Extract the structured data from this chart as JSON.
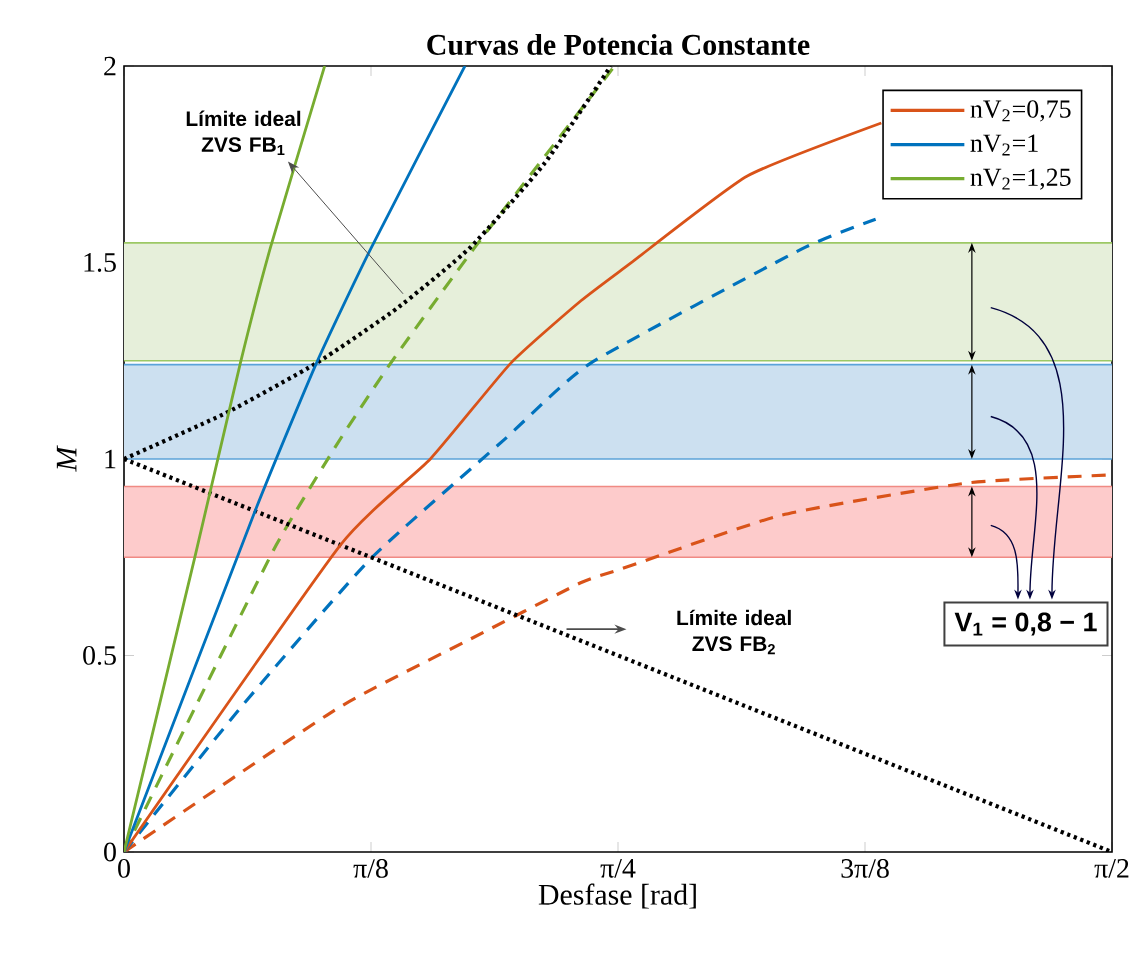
{
  "chart_data": {
    "type": "line",
    "title": "Curvas de Potencia Constante",
    "xlabel": "Desfase [rad]",
    "ylabel": "M",
    "xlim": [
      0,
      1.5708
    ],
    "ylim": [
      0,
      2
    ],
    "xticks": [
      {
        "value": 0,
        "label": "0"
      },
      {
        "value": 0.3927,
        "label": "π/8"
      },
      {
        "value": 0.7854,
        "label": "π/4"
      },
      {
        "value": 1.1781,
        "label": "3π/8"
      },
      {
        "value": 1.5708,
        "label": "π/2"
      }
    ],
    "yticks": [
      0,
      0.5,
      1,
      1.5,
      2
    ],
    "grid": false,
    "legend": "top right",
    "marker": "none",
    "bands": [
      {
        "axis": "y",
        "from": 0.75,
        "to": 0.93,
        "color": "#fdcbcb"
      },
      {
        "axis": "y",
        "from": 1.0,
        "to": 1.24,
        "color": "#cce0f0"
      },
      {
        "axis": "y",
        "from": 1.25,
        "to": 1.55,
        "color": "#e6efda"
      }
    ],
    "ref_lines": [
      {
        "axis": "y",
        "value": 0.75,
        "color": "#f08a84"
      },
      {
        "axis": "y",
        "value": 0.93,
        "color": "#f08a84"
      },
      {
        "axis": "y",
        "value": 1.0,
        "color": "#5ba3d9"
      },
      {
        "axis": "y",
        "value": 1.24,
        "color": "#5ba3d9"
      },
      {
        "axis": "y",
        "value": 1.25,
        "color": "#9cc865"
      },
      {
        "axis": "y",
        "value": 1.55,
        "color": "#9cc865"
      }
    ],
    "series": [
      {
        "name": "nV$_{2}$=0,75",
        "color": "#d95319",
        "line_style": "solid",
        "x": [
          0,
          0.344,
          0.487,
          0.615,
          0.726,
          0.806,
          0.991,
          1.204
        ],
        "values": [
          0,
          0.781,
          1.0,
          1.244,
          1.402,
          1.499,
          1.72,
          1.855
        ]
      },
      {
        "name": "nV$_{2}$=1",
        "color": "#0072bd",
        "line_style": "solid",
        "x": [
          0,
          0.207,
          0.306,
          0.392,
          0.542
        ],
        "values": [
          0,
          0.862,
          1.244,
          1.534,
          2.0
        ]
      },
      {
        "name": "nV$_{2}$=1,25",
        "color": "#77ac30",
        "line_style": "solid",
        "x": [
          0,
          0.112,
          0.185,
          0.233,
          0.319
        ],
        "values": [
          0,
          0.746,
          1.244,
          1.539,
          2.0
        ]
      },
      {
        "color": "#d95319",
        "line_style": "dashed",
        "x": [
          0,
          0.338,
          0.551,
          0.726,
          0.79,
          1.045,
          1.341,
          1.564
        ],
        "values": [
          0,
          0.364,
          0.542,
          0.685,
          0.72,
          0.857,
          0.939,
          0.959
        ]
      },
      {
        "color": "#0072bd",
        "line_style": "dashed",
        "x": [
          0,
          0.191,
          0.392,
          0.605,
          0.742,
          1.077,
          1.195
        ],
        "values": [
          0,
          0.378,
          0.746,
          1.05,
          1.244,
          1.534,
          1.61
        ]
      },
      {
        "color": "#77ac30",
        "line_style": "dashed",
        "x": [
          0,
          0.115,
          0.242,
          0.338,
          0.424,
          0.558,
          0.78
        ],
        "values": [
          0,
          0.374,
          0.781,
          1.036,
          1.244,
          1.539,
          2.0
        ]
      },
      {
        "color": "#000000",
        "line_style": "dotted",
        "x": [
          0,
          0.162,
          0.306,
          0.433,
          0.551,
          0.669,
          0.774
        ],
        "values": [
          1.0,
          1.117,
          1.244,
          1.382,
          1.539,
          1.753,
          2.0
        ]
      },
      {
        "color": "#000000",
        "line_style": "dotted",
        "x": [
          0,
          1.5708
        ],
        "values": [
          1.0,
          0
        ]
      }
    ],
    "annotations": [
      {
        "text": "Límite ideal ZVS FB$_{1}$",
        "x": 0.45,
        "y": 1.4
      },
      "Límite ideal ZVS FB$_{2}$",
      "V$_{1}$ = 0,8 − 1"
    ]
  }
}
